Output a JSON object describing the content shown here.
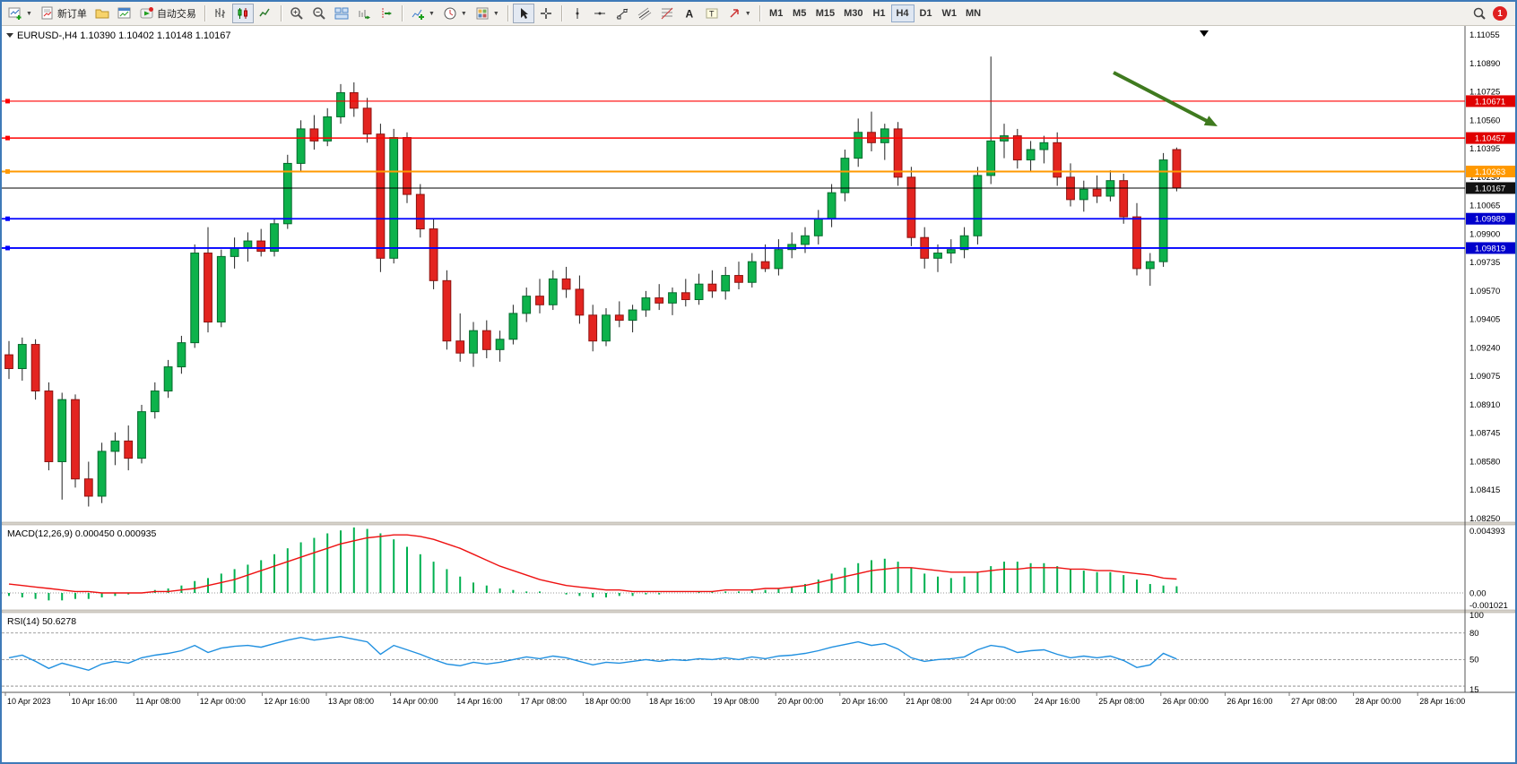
{
  "toolbar": {
    "new_order_label": "新订单",
    "auto_trading_label": "自动交易",
    "timeframes": [
      "M1",
      "M5",
      "M15",
      "M30",
      "H1",
      "H4",
      "D1",
      "W1",
      "MN"
    ],
    "active_timeframe": "H4",
    "notification_count": "1",
    "icon_names": [
      "new-chart-icon",
      "new-order-icon",
      "profiles-icon",
      "market-watch-icon",
      "auto-trading-icon",
      "bar-chart-icon",
      "candlestick-icon",
      "line-chart-icon",
      "zoom-in-icon",
      "zoom-out-icon",
      "tile-windows-icon",
      "auto-scroll-icon",
      "chart-shift-icon",
      "indicators-icon",
      "periods-icon",
      "templates-icon",
      "cursor-icon",
      "crosshair-icon",
      "vertical-line-icon",
      "horizontal-line-icon",
      "trendline-icon",
      "channel-icon",
      "fibonacci-icon",
      "text-icon",
      "label-icon",
      "arrows-icon",
      "search-icon"
    ]
  },
  "chart": {
    "title": "EURUSD-,H4 1.10390 1.10402 1.10148 1.10167",
    "symbol": "EURUSD-",
    "timeframe": "H4",
    "ohlc": {
      "open": "1.10390",
      "high": "1.10402",
      "low": "1.10148",
      "close": "1.10167"
    }
  },
  "price_axis": {
    "ticks": [
      "1.11055",
      "1.10890",
      "1.10725",
      "1.10560",
      "1.10395",
      "1.10230",
      "1.10065",
      "1.09900",
      "1.09735",
      "1.09570",
      "1.09405",
      "1.09240",
      "1.09075",
      "1.08910",
      "1.08745",
      "1.08580",
      "1.08415",
      "1.08250"
    ],
    "badges": [
      {
        "price": 1.10671,
        "label": "1.10671",
        "color": "#e00000"
      },
      {
        "price": 1.10457,
        "label": "1.10457",
        "color": "#e00000"
      },
      {
        "price": 1.10263,
        "label": "1.10263",
        "color": "#ff9900"
      },
      {
        "price": 1.10167,
        "label": "1.10167",
        "color": "#111111"
      },
      {
        "price": 1.09989,
        "label": "1.09989",
        "color": "#0000cc"
      },
      {
        "price": 1.09819,
        "label": "1.09819",
        "color": "#0000cc"
      }
    ]
  },
  "levels": [
    {
      "price": 1.10671,
      "color": "#ff0000",
      "width": 1.2,
      "handle": true
    },
    {
      "price": 1.10457,
      "color": "#ff0000",
      "width": 1.6,
      "handle": true
    },
    {
      "price": 1.10263,
      "color": "#ff9900",
      "width": 2,
      "handle": true
    },
    {
      "price": 1.10167,
      "color": "#000000",
      "width": 1,
      "handle": false
    },
    {
      "price": 1.09989,
      "color": "#0000ff",
      "width": 1.8,
      "handle": true
    },
    {
      "price": 1.09819,
      "color": "#0000ff",
      "width": 1.8,
      "handle": true
    }
  ],
  "macd": {
    "label": "MACD(12,26,9) 0.000450 0.000935",
    "axis_labels": [
      "0.004393",
      "0.00",
      "-0.001021"
    ]
  },
  "rsi": {
    "label": "RSI(14) 50.6278",
    "axis_labels": [
      "100",
      "80",
      "50",
      "15"
    ]
  },
  "time_axis": {
    "labels": [
      "10 Apr 2023",
      "10 Apr 16:00",
      "11 Apr 08:00",
      "12 Apr 00:00",
      "12 Apr 16:00",
      "13 Apr 08:00",
      "14 Apr 00:00",
      "14 Apr 16:00",
      "17 Apr 08:00",
      "18 Apr 00:00",
      "18 Apr 16:00",
      "19 Apr 08:00",
      "20 Apr 00:00",
      "20 Apr 16:00",
      "21 Apr 08:00",
      "24 Apr 00:00",
      "24 Apr 16:00",
      "25 Apr 08:00",
      "26 Apr 00:00",
      "26 Apr 16:00",
      "27 Apr 08:00",
      "28 Apr 00:00",
      "28 Apr 16:00"
    ]
  },
  "colors": {
    "bull": "#0db24b",
    "bear": "#e32420",
    "bull_border": "#046a2c",
    "bear_border": "#8e1210",
    "wick": "#222222",
    "macd_hist": "#00b050",
    "macd_signal": "#ee1111",
    "rsi_line": "#2090e0",
    "arrow": "#3f7a1f"
  },
  "chart_data": {
    "type": "candlestick",
    "title": "EURUSD- H4",
    "ylim": [
      1.0825,
      1.11055
    ],
    "candles": [
      [
        1.092,
        1.0928,
        1.0906,
        1.0912
      ],
      [
        1.0912,
        1.093,
        1.0905,
        1.0926
      ],
      [
        1.0926,
        1.0929,
        1.0894,
        1.0899
      ],
      [
        1.0899,
        1.0904,
        1.0853,
        1.0858
      ],
      [
        1.0858,
        1.0898,
        1.0836,
        1.0894
      ],
      [
        1.0894,
        1.0897,
        1.0843,
        1.0848
      ],
      [
        1.0848,
        1.0858,
        1.0832,
        1.0838
      ],
      [
        1.0838,
        1.0869,
        1.0834,
        1.0864
      ],
      [
        1.0864,
        1.0875,
        1.0856,
        1.087
      ],
      [
        1.087,
        1.0879,
        1.0853,
        1.086
      ],
      [
        1.086,
        1.0891,
        1.0857,
        1.0887
      ],
      [
        1.0887,
        1.0904,
        1.0883,
        1.0899
      ],
      [
        1.0899,
        1.0917,
        1.0895,
        1.0913
      ],
      [
        1.0913,
        1.0931,
        1.0909,
        1.0927
      ],
      [
        1.0927,
        1.0984,
        1.0924,
        1.0979
      ],
      [
        1.0979,
        1.0994,
        1.0933,
        1.0939
      ],
      [
        1.0939,
        1.0981,
        1.0936,
        1.0977
      ],
      [
        1.0977,
        1.0988,
        1.097,
        1.0982
      ],
      [
        1.0982,
        1.0991,
        1.0974,
        1.0986
      ],
      [
        1.0986,
        1.0993,
        1.0977,
        1.098
      ],
      [
        1.098,
        1.0999,
        1.0977,
        1.0996
      ],
      [
        1.0996,
        1.1036,
        1.0993,
        1.1031
      ],
      [
        1.1031,
        1.1056,
        1.1026,
        1.1051
      ],
      [
        1.1051,
        1.1059,
        1.1039,
        1.1044
      ],
      [
        1.1044,
        1.1063,
        1.1041,
        1.1058
      ],
      [
        1.1058,
        1.1077,
        1.1054,
        1.1072
      ],
      [
        1.1072,
        1.1078,
        1.1058,
        1.1063
      ],
      [
        1.1063,
        1.1069,
        1.1043,
        1.1048
      ],
      [
        1.1048,
        1.1054,
        1.0968,
        1.0976
      ],
      [
        1.0976,
        1.1051,
        1.0973,
        1.1046
      ],
      [
        1.1046,
        1.1049,
        1.1008,
        1.1013
      ],
      [
        1.1013,
        1.1019,
        1.0988,
        1.0993
      ],
      [
        1.0993,
        1.0999,
        1.0958,
        1.0963
      ],
      [
        1.0963,
        1.0969,
        1.0923,
        1.0928
      ],
      [
        1.0928,
        1.0944,
        1.0916,
        1.0921
      ],
      [
        1.0921,
        1.0939,
        1.0913,
        1.0934
      ],
      [
        1.0934,
        1.094,
        1.0918,
        1.0923
      ],
      [
        1.0923,
        1.0934,
        1.0916,
        1.0929
      ],
      [
        1.0929,
        1.0949,
        1.0926,
        1.0944
      ],
      [
        1.0944,
        1.0959,
        1.0939,
        1.0954
      ],
      [
        1.0954,
        1.0964,
        1.0944,
        1.0949
      ],
      [
        1.0949,
        1.0969,
        1.0946,
        1.0964
      ],
      [
        1.0964,
        1.0971,
        1.0953,
        1.0958
      ],
      [
        1.0958,
        1.0966,
        1.0938,
        1.0943
      ],
      [
        1.0943,
        1.0949,
        1.0922,
        1.0928
      ],
      [
        1.0928,
        1.0947,
        1.0925,
        1.0943
      ],
      [
        1.0943,
        1.0951,
        1.0936,
        1.094
      ],
      [
        1.094,
        1.0949,
        1.0933,
        1.0946
      ],
      [
        1.0946,
        1.0957,
        1.0942,
        1.0953
      ],
      [
        1.0953,
        1.0961,
        1.0946,
        1.095
      ],
      [
        1.095,
        1.0959,
        1.0943,
        1.0956
      ],
      [
        1.0956,
        1.0964,
        1.0948,
        1.0952
      ],
      [
        1.0952,
        1.0967,
        1.0949,
        1.0961
      ],
      [
        1.0961,
        1.0969,
        1.0953,
        1.0957
      ],
      [
        1.0957,
        1.0971,
        1.0952,
        1.0966
      ],
      [
        1.0966,
        1.0974,
        1.0958,
        1.0962
      ],
      [
        1.0962,
        1.0979,
        1.0959,
        1.0974
      ],
      [
        1.0974,
        1.0984,
        1.0968,
        1.097
      ],
      [
        1.097,
        1.0987,
        1.0966,
        1.0981
      ],
      [
        1.0981,
        1.0991,
        1.0976,
        1.0984
      ],
      [
        1.0984,
        1.0994,
        1.0979,
        1.0989
      ],
      [
        1.0989,
        1.1004,
        1.0984,
        1.0999
      ],
      [
        1.0999,
        1.1019,
        1.0994,
        1.1014
      ],
      [
        1.1014,
        1.1039,
        1.1009,
        1.1034
      ],
      [
        1.1034,
        1.1057,
        1.1029,
        1.1049
      ],
      [
        1.1049,
        1.1061,
        1.1038,
        1.1043
      ],
      [
        1.1043,
        1.1054,
        1.1033,
        1.1051
      ],
      [
        1.1051,
        1.1055,
        1.1018,
        1.1023
      ],
      [
        1.1023,
        1.1029,
        1.0983,
        1.0988
      ],
      [
        1.0988,
        1.0994,
        1.097,
        1.0976
      ],
      [
        1.0976,
        1.0984,
        1.0968,
        1.0979
      ],
      [
        1.0979,
        1.0987,
        1.0973,
        1.0981
      ],
      [
        1.0981,
        1.0994,
        1.0976,
        1.0989
      ],
      [
        1.0989,
        1.1029,
        1.0984,
        1.1024
      ],
      [
        1.1024,
        1.1093,
        1.1019,
        1.1044
      ],
      [
        1.1044,
        1.1054,
        1.1034,
        1.1047
      ],
      [
        1.1047,
        1.1051,
        1.1028,
        1.1033
      ],
      [
        1.1033,
        1.1044,
        1.1026,
        1.1039
      ],
      [
        1.1039,
        1.1047,
        1.1031,
        1.1043
      ],
      [
        1.1043,
        1.1049,
        1.1018,
        1.1023
      ],
      [
        1.1023,
        1.1031,
        1.1006,
        1.101
      ],
      [
        1.101,
        1.1021,
        1.1003,
        1.1016
      ],
      [
        1.1016,
        1.1024,
        1.1008,
        1.1012
      ],
      [
        1.1012,
        1.1027,
        1.1009,
        1.1021
      ],
      [
        1.1021,
        1.1025,
        1.0996,
        1.1
      ],
      [
        1.1,
        1.1008,
        1.0966,
        1.097
      ],
      [
        1.097,
        1.0979,
        1.096,
        1.0974
      ],
      [
        1.0974,
        1.1037,
        1.0971,
        1.1033
      ],
      [
        1.1039,
        1.10402,
        1.10148,
        1.10167
      ]
    ],
    "indicators": [
      {
        "name": "MACD",
        "params": "12,26,9",
        "current": "0.000450 0.000935",
        "ylim": [
          -0.001021,
          0.004393
        ],
        "histogram": [
          -0.0002,
          -0.0003,
          -0.0004,
          -0.0005,
          -0.0005,
          -0.0004,
          -0.0004,
          -0.0003,
          -0.0002,
          -0.0001,
          0.0,
          0.0002,
          0.0003,
          0.0005,
          0.0008,
          0.001,
          0.0013,
          0.0016,
          0.0019,
          0.0022,
          0.0026,
          0.003,
          0.0034,
          0.0037,
          0.004,
          0.0042,
          0.0044,
          0.0043,
          0.004,
          0.0036,
          0.0031,
          0.0026,
          0.0021,
          0.0016,
          0.0011,
          0.0007,
          0.0005,
          0.0003,
          0.0002,
          0.0001,
          0.0001,
          0.0,
          -0.0001,
          -0.0002,
          -0.0003,
          -0.0003,
          -0.0002,
          -0.0002,
          -0.0001,
          -0.0001,
          0.0,
          0.0,
          0.0001,
          0.0001,
          0.0001,
          0.0001,
          0.0002,
          0.0002,
          0.0003,
          0.0004,
          0.0006,
          0.0009,
          0.0013,
          0.0017,
          0.002,
          0.0022,
          0.0023,
          0.0021,
          0.0017,
          0.0013,
          0.0011,
          0.001,
          0.0011,
          0.0014,
          0.0018,
          0.0021,
          0.0021,
          0.002,
          0.002,
          0.0018,
          0.0016,
          0.0015,
          0.0014,
          0.0014,
          0.0012,
          0.0009,
          0.0006,
          0.0005,
          0.00045
        ],
        "signal": [
          0.0006,
          0.0005,
          0.0004,
          0.0003,
          0.0002,
          0.0001,
          0.0001,
          0.0,
          0.0,
          0.0,
          0.0,
          0.0001,
          0.0001,
          0.0002,
          0.0003,
          0.0005,
          0.0007,
          0.0009,
          0.0012,
          0.0015,
          0.0018,
          0.0021,
          0.0024,
          0.0027,
          0.003,
          0.0033,
          0.0035,
          0.0037,
          0.0038,
          0.0039,
          0.0039,
          0.0038,
          0.0036,
          0.0033,
          0.003,
          0.0026,
          0.0022,
          0.0018,
          0.0015,
          0.0012,
          0.0009,
          0.0007,
          0.0005,
          0.0004,
          0.0003,
          0.0002,
          0.0002,
          0.0001,
          0.0001,
          0.0001,
          0.0001,
          0.0001,
          0.0001,
          0.0001,
          0.0002,
          0.0002,
          0.0002,
          0.0003,
          0.0003,
          0.0004,
          0.0005,
          0.0007,
          0.0009,
          0.0011,
          0.0013,
          0.0015,
          0.0016,
          0.0017,
          0.0017,
          0.0016,
          0.0015,
          0.0014,
          0.0014,
          0.0014,
          0.0015,
          0.0016,
          0.0016,
          0.0017,
          0.0017,
          0.0017,
          0.0016,
          0.0016,
          0.0015,
          0.0015,
          0.0014,
          0.0013,
          0.0012,
          0.001,
          0.000935
        ]
      },
      {
        "name": "RSI",
        "params": "14",
        "current": "50.6278",
        "ylim": [
          15,
          100
        ],
        "levels": [
          80,
          50,
          20
        ],
        "values": [
          52,
          55,
          48,
          40,
          46,
          42,
          38,
          45,
          48,
          46,
          52,
          55,
          57,
          60,
          66,
          58,
          63,
          65,
          66,
          64,
          68,
          72,
          75,
          72,
          74,
          76,
          73,
          70,
          56,
          66,
          61,
          56,
          50,
          45,
          43,
          47,
          45,
          47,
          50,
          53,
          51,
          54,
          52,
          48,
          44,
          47,
          46,
          48,
          50,
          48,
          50,
          49,
          51,
          50,
          52,
          50,
          53,
          51,
          54,
          55,
          57,
          60,
          64,
          67,
          70,
          66,
          68,
          62,
          52,
          48,
          50,
          51,
          53,
          61,
          66,
          64,
          58,
          60,
          61,
          56,
          52,
          54,
          52,
          54,
          49,
          41,
          44,
          57,
          50.6
        ]
      }
    ]
  }
}
